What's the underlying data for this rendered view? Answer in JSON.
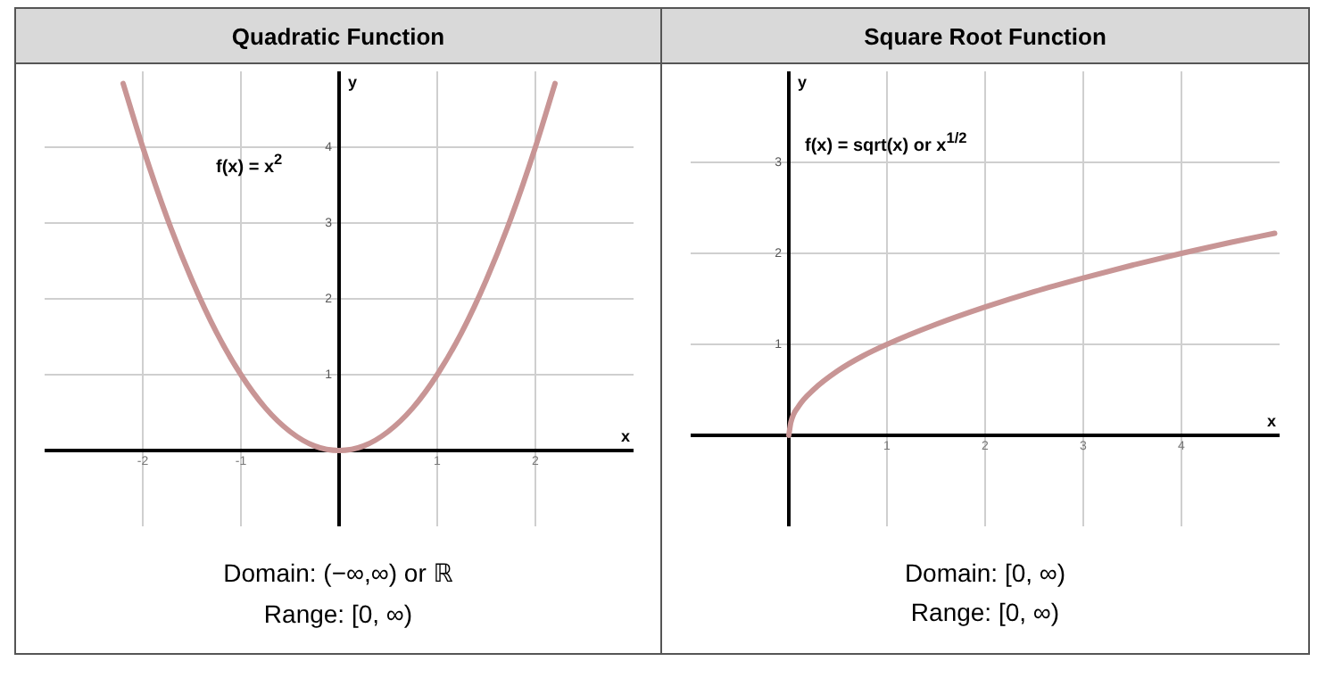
{
  "chart_data": [
    {
      "type": "line",
      "title": "Quadratic Function",
      "xlabel": "x",
      "ylabel": "y",
      "x": [
        -2.2,
        -2,
        -1.75,
        -1.5,
        -1.25,
        -1,
        -0.75,
        -0.5,
        -0.25,
        0,
        0.25,
        0.5,
        0.75,
        1,
        1.25,
        1.5,
        1.75,
        2,
        2.2
      ],
      "series": [
        {
          "color": "#c89595",
          "values": [
            4.84,
            4,
            3.06,
            2.25,
            1.56,
            1,
            0.56,
            0.25,
            0.06,
            0,
            0.06,
            0.25,
            0.56,
            1,
            1.56,
            2.25,
            3.06,
            4,
            4.84
          ]
        }
      ],
      "xlim": [
        -3,
        3
      ],
      "ylim": [
        -1,
        5
      ],
      "xticks": [
        -2,
        -1,
        1,
        2
      ],
      "yticks": [
        1,
        2,
        3,
        4
      ],
      "grid": true,
      "marker": "none",
      "annotations": [
        "f(x) = x$^{2}$",
        "Domain: (−∞,∞) or ℝ",
        "Range: [0, ∞)"
      ]
    },
    {
      "type": "line",
      "title": "Square Root Function",
      "xlabel": "x",
      "ylabel": "y",
      "x": [
        0,
        0.02,
        0.1,
        0.25,
        0.5,
        0.75,
        1,
        1.5,
        2,
        2.5,
        3,
        3.5,
        4,
        4.5,
        4.95
      ],
      "series": [
        {
          "color": "#c89595",
          "values": [
            0,
            0.14,
            0.32,
            0.5,
            0.71,
            0.87,
            1,
            1.22,
            1.41,
            1.58,
            1.73,
            1.87,
            2,
            2.12,
            2.22
          ]
        }
      ],
      "xlim": [
        -1,
        5
      ],
      "ylim": [
        -1,
        4
      ],
      "xticks": [
        1,
        2,
        3,
        4
      ],
      "yticks": [
        1,
        2,
        3
      ],
      "grid": true,
      "marker": "none",
      "annotations": [
        "f(x) = sqrt(x)  or  x$^{1/2}$",
        "Domain: [0, ∞)",
        "Range: [0, ∞)"
      ]
    }
  ]
}
